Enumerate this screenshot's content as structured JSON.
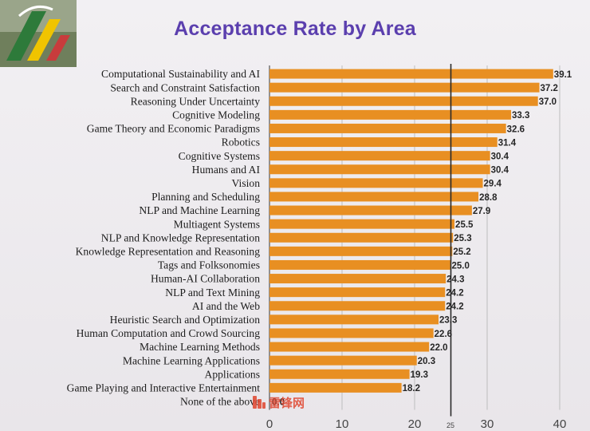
{
  "chart_data": {
    "type": "bar",
    "orientation": "horizontal",
    "title": "Acceptance Rate by Area",
    "xlabel": "",
    "ylabel": "",
    "xlim": [
      0,
      40
    ],
    "xticks": [
      0,
      10,
      20,
      30,
      40
    ],
    "minor_tick_label": "25",
    "reference_line": 25,
    "grid": "vertical",
    "bar_color": "#e88f22",
    "categories": [
      "Computational Sustainability and AI",
      "Search and Constraint Satisfaction",
      "Reasoning Under Uncertainty",
      "Cognitive Modeling",
      "Game Theory and Economic Paradigms",
      "Robotics",
      "Cognitive Systems",
      "Humans and AI",
      "Vision",
      "Planning and Scheduling",
      "NLP and Machine Learning",
      "Multiagent Systems",
      "NLP and Knowledge Representation",
      "Knowledge Representation and Reasoning",
      "Tags and Folksonomies",
      "Human-AI Collaboration",
      "NLP and Text Mining",
      "AI and the Web",
      "Heuristic Search and Optimization",
      "Human Computation and Crowd Sourcing",
      "Machine Learning Methods",
      "Machine Learning Applications",
      "Applications",
      "Game Playing and Interactive Entertainment",
      "None of the above"
    ],
    "values": [
      39.1,
      37.2,
      37.0,
      33.3,
      32.6,
      31.4,
      30.4,
      30.4,
      29.4,
      28.8,
      27.9,
      25.5,
      25.3,
      25.2,
      25.0,
      24.3,
      24.2,
      24.2,
      23.3,
      22.6,
      22.0,
      20.3,
      19.3,
      18.2,
      0.0
    ],
    "value_labels": [
      "39.1",
      "37.2",
      "37.0",
      "33.3",
      "32.6",
      "31.4",
      "30.4",
      "30.4",
      "29.4",
      "28.8",
      "27.9",
      "25.5",
      "25.3",
      "25.2",
      "25.0",
      "24.3",
      "24.2",
      "24.2",
      "23.3",
      "22.6",
      "22.0",
      "20.3",
      "19.3",
      "18.2",
      "0.0"
    ]
  },
  "watermark": {
    "text": "雷锋网",
    "color": "#e0462f"
  }
}
